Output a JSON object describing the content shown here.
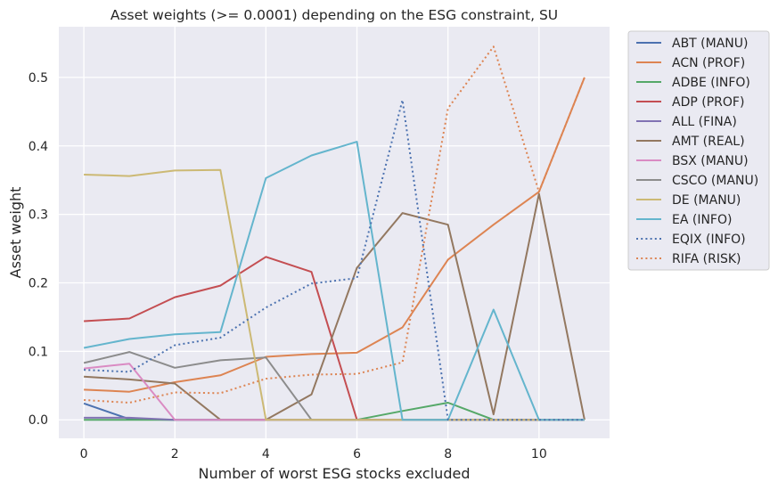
{
  "chart_data": {
    "type": "line",
    "title": "Asset weights (>= 0.0001) depending on the ESG constraint, SU",
    "xlabel": "Number of worst ESG stocks excluded",
    "ylabel": "Asset weight",
    "x": [
      0,
      1,
      2,
      3,
      4,
      5,
      6,
      7,
      8,
      9,
      10,
      11
    ],
    "xlim": [
      -0.55,
      11.55
    ],
    "ylim": [
      -0.027,
      0.574
    ],
    "xticks": [
      0,
      2,
      4,
      6,
      8,
      10
    ],
    "yticks": [
      0.0,
      0.1,
      0.2,
      0.3,
      0.4,
      0.5
    ],
    "ytick_labels": [
      "0.0",
      "0.1",
      "0.2",
      "0.3",
      "0.4",
      "0.5"
    ],
    "grid": true,
    "legend_position": "outside-right",
    "series": [
      {
        "name": "ABT (MANU)",
        "color": "#4c72b0",
        "style": "solid",
        "values": [
          0.024,
          0.001,
          0,
          0,
          0,
          0,
          0,
          0,
          0,
          0,
          0,
          0
        ]
      },
      {
        "name": "ACN (PROF)",
        "color": "#dd8452",
        "style": "solid",
        "values": [
          0.044,
          0.041,
          0.055,
          0.065,
          0.092,
          0.096,
          0.098,
          0.135,
          0.234,
          0.285,
          0.333,
          0.5
        ]
      },
      {
        "name": "ADBE (INFO)",
        "color": "#55a868",
        "style": "solid",
        "values": [
          0,
          0,
          0,
          0,
          0,
          0,
          0,
          0.013,
          0.025,
          0,
          0,
          0
        ]
      },
      {
        "name": "ADP (PROF)",
        "color": "#c44e52",
        "style": "solid",
        "values": [
          0.144,
          0.148,
          0.179,
          0.196,
          0.238,
          0.216,
          0,
          0,
          0,
          0,
          0,
          0
        ]
      },
      {
        "name": "ALL (FINA)",
        "color": "#8172b3",
        "style": "solid",
        "values": [
          0.003,
          0.003,
          0,
          0,
          0,
          0,
          0,
          0,
          0,
          0,
          0,
          0
        ]
      },
      {
        "name": "AMT (REAL)",
        "color": "#937860",
        "style": "solid",
        "values": [
          0.063,
          0.059,
          0.053,
          0,
          0,
          0.037,
          0.222,
          0.302,
          0.285,
          0.008,
          0.33,
          0
        ]
      },
      {
        "name": "BSX (MANU)",
        "color": "#da8bc3",
        "style": "solid",
        "values": [
          0.075,
          0.082,
          0,
          0,
          0,
          0,
          0,
          0,
          0,
          0,
          0,
          0
        ]
      },
      {
        "name": "CSCO (MANU)",
        "color": "#8c8c8c",
        "style": "solid",
        "values": [
          0.083,
          0.099,
          0.076,
          0.087,
          0.091,
          0,
          0,
          0,
          0,
          0,
          0,
          0
        ]
      },
      {
        "name": "DE (MANU)",
        "color": "#ccb974",
        "style": "solid",
        "values": [
          0.358,
          0.356,
          0.364,
          0.365,
          0,
          0,
          0,
          0,
          0,
          0,
          0,
          0
        ]
      },
      {
        "name": "EA (INFO)",
        "color": "#64b5cd",
        "style": "solid",
        "values": [
          0.105,
          0.118,
          0.125,
          0.128,
          0.353,
          0.386,
          0.406,
          0,
          0,
          0.161,
          0,
          0
        ]
      },
      {
        "name": "EQIX (INFO)",
        "color": "#4c72b0",
        "style": "dotted",
        "values": [
          0.073,
          0.07,
          0.109,
          0.12,
          0.164,
          0.199,
          0.207,
          0.467,
          0,
          0,
          0,
          0
        ]
      },
      {
        "name": "RIFA (RISK)",
        "color": "#dd8452",
        "style": "dotted",
        "values": [
          0.029,
          0.025,
          0.04,
          0.039,
          0.06,
          0.066,
          0.067,
          0.084,
          0.455,
          0.545,
          0.333,
          0.5
        ]
      }
    ]
  }
}
